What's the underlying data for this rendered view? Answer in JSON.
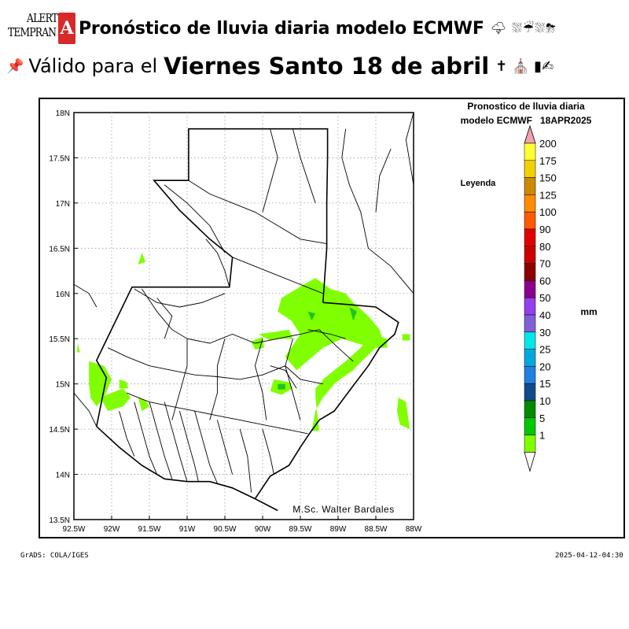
{
  "header": {
    "logo_line1": "ALERT",
    "logo_line2": "TEMPRAN",
    "logo_mark": "A",
    "title": "Pronóstico de lluvia diaria modelo ECMWF",
    "weather_icons": "🌩 ⛆☔⛆⛈",
    "pin_icon": "📌",
    "valid_prefix": "Válido para el",
    "valid_date": "Viernes Santo 18 de abril",
    "decor_icons": "✝ ⛪ ▮✍"
  },
  "map": {
    "plot_title_line1": "Pronostico de lluvia diaria",
    "plot_title_line2": "modelo ECMWF   18APR2025",
    "legend_title": "Leyenda",
    "unit": "mm",
    "credit": "M.Sc. Walter Bardales",
    "lat_labels": [
      "18N",
      "17.5N",
      "17N",
      "16.5N",
      "16N",
      "15.5N",
      "15N",
      "14.5N",
      "14N",
      "13.5N"
    ],
    "lon_labels": [
      "92.5W",
      "92W",
      "91.5W",
      "91W",
      "90.5W",
      "90W",
      "89.5W",
      "89W",
      "88.5W",
      "88W"
    ],
    "lat_range": [
      13.5,
      18
    ],
    "lon_range": [
      -92.5,
      -88
    ],
    "rain_color": "#80ff00",
    "rain_dark_color": "#1fc31f"
  },
  "legend": {
    "levels": [
      {
        "label": "200",
        "color": "#ffff33"
      },
      {
        "label": "175",
        "color": "#f2d000"
      },
      {
        "label": "150",
        "color": "#cc8a00"
      },
      {
        "label": "125",
        "color": "#ff8c00"
      },
      {
        "label": "100",
        "color": "#ff5a00"
      },
      {
        "label": "90",
        "color": "#e00000"
      },
      {
        "label": "80",
        "color": "#cc0000"
      },
      {
        "label": "70",
        "color": "#8c0000"
      },
      {
        "label": "60",
        "color": "#8c008c"
      },
      {
        "label": "50",
        "color": "#9440ee"
      },
      {
        "label": "40",
        "color": "#8060d8"
      },
      {
        "label": "30",
        "color": "#00e8e8"
      },
      {
        "label": "25",
        "color": "#00a8e0"
      },
      {
        "label": "20",
        "color": "#2080e0"
      },
      {
        "label": "15",
        "color": "#104c8c"
      },
      {
        "label": "10",
        "color": "#008c00"
      },
      {
        "label": "5",
        "color": "#00c800"
      },
      {
        "label": "1",
        "color": "#80ff00"
      }
    ],
    "top_arrow_color": "#f4a0b0"
  },
  "footer": {
    "left": "GrADS: COLA/IGES",
    "right": "2025-04-12-04:30"
  }
}
